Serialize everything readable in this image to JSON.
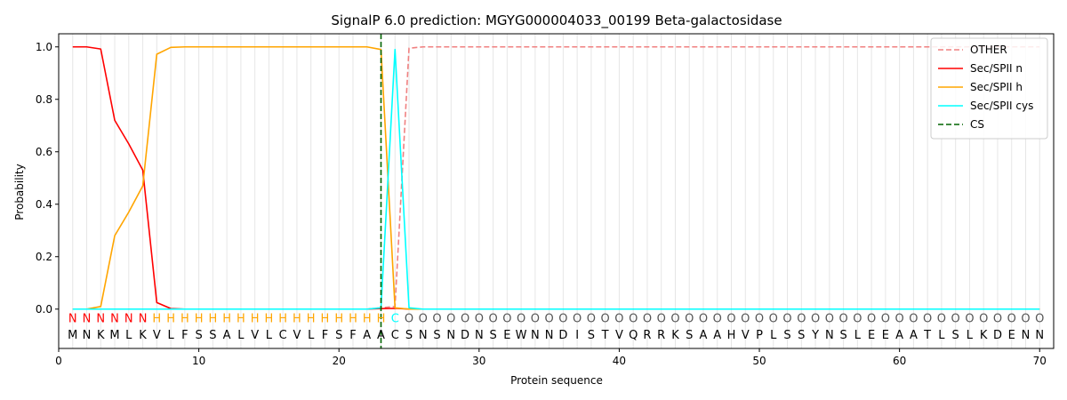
{
  "chart_data": {
    "type": "line",
    "title": "SignalP 6.0 prediction: MGYG000004033_00199 Beta-galactosidase",
    "xlabel": "Protein sequence",
    "ylabel": "Probability",
    "xlim": [
      0,
      71
    ],
    "ylim": [
      -0.15,
      1.05
    ],
    "xticks": [
      0,
      10,
      20,
      30,
      40,
      50,
      60,
      70
    ],
    "yticks": [
      0.0,
      0.2,
      0.4,
      0.6,
      0.8,
      1.0
    ],
    "ytick_labels": [
      "0.0",
      "0.2",
      "0.4",
      "0.6",
      "0.8",
      "1.0"
    ],
    "grid": "vertical lines at each residue position",
    "legend_position": "top-right",
    "sequence": [
      "M",
      "N",
      "K",
      "M",
      "L",
      "K",
      "V",
      "L",
      "F",
      "S",
      "S",
      "A",
      "L",
      "V",
      "L",
      "C",
      "V",
      "L",
      "F",
      "S",
      "F",
      "A",
      "A",
      "C",
      "S",
      "N",
      "S",
      "N",
      "D",
      "N",
      "S",
      "E",
      "W",
      "N",
      "N",
      "D",
      "I",
      "S",
      "T",
      "V",
      "Q",
      "R",
      "R",
      "K",
      "S",
      "A",
      "A",
      "H",
      "V",
      "P",
      "L",
      "S",
      "S",
      "Y",
      "N",
      "S",
      "L",
      "E",
      "E",
      "A",
      "A",
      "T",
      "L",
      "S",
      "L",
      "K",
      "D",
      "E",
      "N",
      "N"
    ],
    "labels": [
      "N",
      "N",
      "N",
      "N",
      "N",
      "N",
      "H",
      "H",
      "H",
      "H",
      "H",
      "H",
      "H",
      "H",
      "H",
      "H",
      "H",
      "H",
      "H",
      "H",
      "H",
      "H",
      "H",
      "C",
      "O",
      "O",
      "O",
      "O",
      "O",
      "O",
      "O",
      "O",
      "O",
      "O",
      "O",
      "O",
      "O",
      "O",
      "O",
      "O",
      "O",
      "O",
      "O",
      "O",
      "O",
      "O",
      "O",
      "O",
      "O",
      "O",
      "O",
      "O",
      "O",
      "O",
      "O",
      "O",
      "O",
      "O",
      "O",
      "O",
      "O",
      "O",
      "O",
      "O",
      "O",
      "O",
      "O",
      "O",
      "O",
      "O"
    ],
    "label_colors": {
      "N": "#ff0000",
      "H": "#ffa500",
      "C": "#00ffff",
      "O": "#555555"
    },
    "label_display": {
      "N": "N",
      "H": "H",
      "C": "C",
      "O": "O"
    },
    "series": [
      {
        "name": "OTHER",
        "color": "#f08080",
        "dash": "dashed",
        "values": [
          0,
          0,
          0,
          0,
          0,
          0,
          0,
          0,
          0,
          0,
          0,
          0,
          0,
          0,
          0,
          0,
          0,
          0,
          0,
          0,
          0,
          0,
          0.005,
          0.01,
          0.995,
          1,
          1,
          1,
          1,
          1,
          1,
          1,
          1,
          1,
          1,
          1,
          1,
          1,
          1,
          1,
          1,
          1,
          1,
          1,
          1,
          1,
          1,
          1,
          1,
          1,
          1,
          1,
          1,
          1,
          1,
          1,
          1,
          1,
          1,
          1,
          1,
          1,
          1,
          1,
          1,
          1,
          1,
          1,
          1,
          1
        ]
      },
      {
        "name": "Sec/SPII n",
        "color": "#ff0000",
        "dash": "solid",
        "values": [
          1.0,
          1.0,
          0.992,
          0.72,
          0.63,
          0.53,
          0.025,
          0.002,
          0,
          0,
          0,
          0,
          0,
          0,
          0,
          0,
          0,
          0,
          0,
          0,
          0,
          0,
          0.002,
          0.003,
          0,
          0,
          0,
          0,
          0,
          0,
          0,
          0,
          0,
          0,
          0,
          0,
          0,
          0,
          0,
          0,
          0,
          0,
          0,
          0,
          0,
          0,
          0,
          0,
          0,
          0,
          0,
          0,
          0,
          0,
          0,
          0,
          0,
          0,
          0,
          0,
          0,
          0,
          0,
          0,
          0,
          0,
          0,
          0,
          0,
          0
        ]
      },
      {
        "name": "Sec/SPII h",
        "color": "#ffa500",
        "dash": "solid",
        "values": [
          0,
          0,
          0.01,
          0.28,
          0.37,
          0.47,
          0.972,
          0.998,
          1.0,
          1.0,
          1.0,
          1.0,
          1.0,
          1.0,
          1.0,
          1.0,
          1.0,
          1.0,
          1.0,
          1.0,
          1.0,
          1.0,
          0.99,
          0.005,
          0,
          0,
          0,
          0,
          0,
          0,
          0,
          0,
          0,
          0,
          0,
          0,
          0,
          0,
          0,
          0,
          0,
          0,
          0,
          0,
          0,
          0,
          0,
          0,
          0,
          0,
          0,
          0,
          0,
          0,
          0,
          0,
          0,
          0,
          0,
          0,
          0,
          0,
          0,
          0,
          0,
          0,
          0,
          0,
          0,
          0
        ]
      },
      {
        "name": "Sec/SPII cys",
        "color": "#00ffff",
        "dash": "solid",
        "values": [
          0,
          0,
          0,
          0,
          0,
          0,
          0,
          0,
          0,
          0,
          0,
          0,
          0,
          0,
          0,
          0,
          0,
          0,
          0,
          0,
          0,
          0,
          0.005,
          0.99,
          0.005,
          0,
          0,
          0,
          0,
          0,
          0,
          0,
          0,
          0,
          0,
          0,
          0,
          0,
          0,
          0,
          0,
          0,
          0,
          0,
          0,
          0,
          0,
          0,
          0,
          0,
          0,
          0,
          0,
          0,
          0,
          0,
          0,
          0,
          0,
          0,
          0,
          0,
          0,
          0,
          0,
          0,
          0,
          0,
          0,
          0
        ]
      }
    ],
    "cs": {
      "name": "CS",
      "x": 23,
      "color": "#006400",
      "dash": "dashed"
    }
  }
}
